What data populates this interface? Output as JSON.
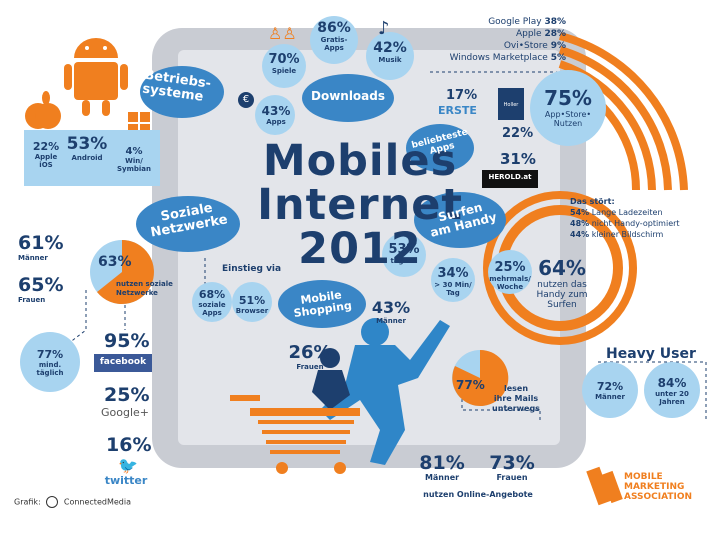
{
  "title": {
    "line1": "Mobiles",
    "line2": "Internet",
    "year": "2012"
  },
  "os": {
    "label": "Betriebs-\nsysteme",
    "apple": {
      "value": "22%",
      "label": "Apple\niOS"
    },
    "android": {
      "value": "53%",
      "label": "Android"
    },
    "win": {
      "value": "4%",
      "label": "Win/\nSymbian"
    }
  },
  "downloads": {
    "label": "Downloads",
    "games": {
      "value": "70%",
      "label": "Spiele"
    },
    "free_apps": {
      "value": "86%",
      "label": "Gratis-\nApps"
    },
    "music": {
      "value": "42%",
      "label": "Musik"
    },
    "paid_apps": {
      "value": "43%",
      "label": "Apps"
    }
  },
  "stores": {
    "items": [
      {
        "name": "Google Play",
        "value": "38%"
      },
      {
        "name": "Apple",
        "value": "28%"
      },
      {
        "name": "Ovi•Store",
        "value": "9%"
      },
      {
        "name": "Windows Marketplace",
        "value": "5%"
      }
    ],
    "users": {
      "value": "75%",
      "label": "App•Store•\nNutzen"
    }
  },
  "popular_apps": {
    "label": "beliebteste\nApps",
    "erste": {
      "value": "17%",
      "brand": "ERSTE"
    },
    "holler": {
      "value": "22%",
      "brand": "Holler"
    },
    "herold": {
      "value": "31%",
      "brand": "HEROLD.at"
    }
  },
  "disturbances": {
    "heading": "Das stört:",
    "items": [
      {
        "value": "54%",
        "text": "Lange Ladezeiten"
      },
      {
        "value": "48%",
        "text": "nicht Handy-optimiert"
      },
      {
        "value": "44%",
        "text": "kleiner Bildschirm"
      }
    ]
  },
  "surfing": {
    "label": "Surfen\nam Handy",
    "daily": {
      "value": "53%",
      "label": "täglich"
    },
    "min": {
      "value": "34%",
      "label": "> 30 Min/\nTag"
    },
    "weekly": {
      "value": "25%",
      "label": "mehrmals/\nWoche"
    },
    "phone": {
      "value": "64%",
      "label": "nutzen das\nHandy zum\nSurfen"
    }
  },
  "social": {
    "label": "Soziale\nNetzwerke",
    "men": {
      "value": "61%",
      "label": "Männer"
    },
    "women": {
      "value": "65%",
      "label": "Frauen"
    },
    "use": {
      "value": "63%",
      "label": "nutzen soziale\nNetzwerke"
    },
    "daily": {
      "value": "77%",
      "label": "mind.\ntäglich"
    },
    "facebook": {
      "value": "95%",
      "brand": "facebook"
    },
    "google": {
      "value": "25%",
      "brand": "Google+"
    },
    "twitter": {
      "value": "16%",
      "brand": "twitter"
    }
  },
  "entry": {
    "label": "Einstieg via",
    "apps": {
      "value": "68%",
      "label": "soziale\nApps"
    },
    "browser": {
      "value": "51%",
      "label": "Browser"
    }
  },
  "shopping": {
    "label": "Mobile\nShopping",
    "men": {
      "value": "43%",
      "label": "Männer"
    },
    "women": {
      "value": "26%",
      "label": "Frauen"
    }
  },
  "mails": {
    "value": "77%",
    "label": "lesen\nihre Mails\nunterwegs"
  },
  "online": {
    "men": {
      "value": "81%",
      "label": "Männer"
    },
    "women": {
      "value": "73%",
      "label": "Frauen"
    },
    "caption": "nutzen Online-Angebote"
  },
  "heavy_user": {
    "label": "Heavy User",
    "men": {
      "value": "72%",
      "label": "Männer"
    },
    "young": {
      "value": "84%",
      "label": "unter 20\nJahren"
    }
  },
  "credit": {
    "prefix": "Grafik:",
    "name": "ConnectedMedia"
  },
  "mma": {
    "line1": "MOBILE",
    "line2": "MARKETING",
    "line3": "ASSOCIATION"
  },
  "colors": {
    "dark_blue": "#1d3f6e",
    "blue": "#3a86c6",
    "light_blue": "#a8d4f0",
    "orange": "#f07f1f",
    "frame": "#c9ccd3"
  }
}
